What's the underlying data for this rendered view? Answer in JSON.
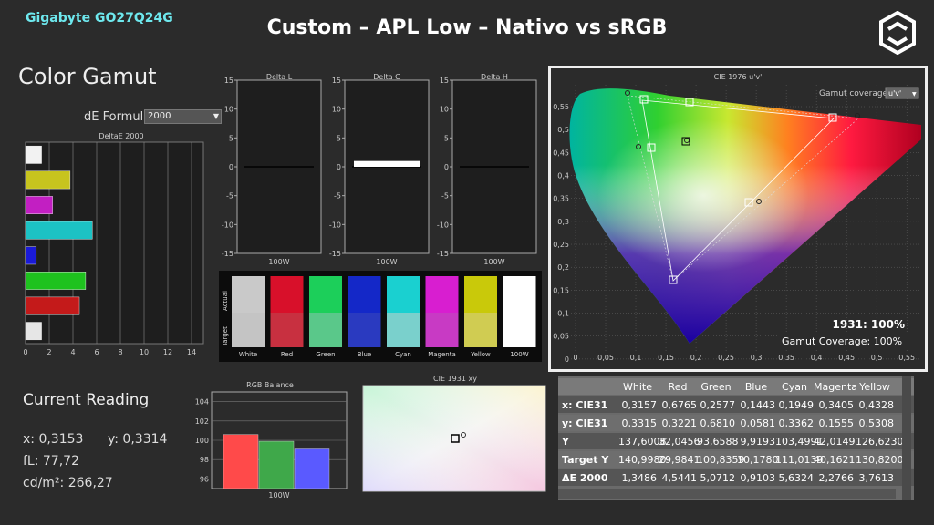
{
  "header": {
    "brand": "Gigabyte GO27Q24G",
    "title": "Custom – APL Low – Nativo vs sRGB"
  },
  "gamut_panel": {
    "title": "Color Gamut",
    "de_formula_label": "dE Formula:",
    "de_formula_value": "2000"
  },
  "deltae": {
    "title": "DeltaE 2000",
    "ticks": [
      "0",
      "2",
      "4",
      "6",
      "8",
      "10",
      "12",
      "14"
    ],
    "bars": [
      {
        "name": "White",
        "value": 1.35,
        "color": "#f2f2f2"
      },
      {
        "name": "Yellow",
        "value": 3.76,
        "color": "#c7c41e"
      },
      {
        "name": "Magenta",
        "value": 2.28,
        "color": "#c21fc2"
      },
      {
        "name": "Cyan",
        "value": 5.63,
        "color": "#1cc2c4"
      },
      {
        "name": "Blue",
        "value": 0.91,
        "color": "#1a1ad8"
      },
      {
        "name": "Green",
        "value": 5.07,
        "color": "#1ec21e"
      },
      {
        "name": "Red",
        "value": 4.54,
        "color": "#c41a1a"
      },
      {
        "name": "100W",
        "value": 1.35,
        "color": "#e6e6e6"
      }
    ]
  },
  "delta_charts": [
    {
      "title": "Delta L",
      "xlabel": "100W",
      "value": 0
    },
    {
      "title": "Delta C",
      "xlabel": "100W",
      "value": 1.0
    },
    {
      "title": "Delta H",
      "xlabel": "100W",
      "value": 0
    }
  ],
  "delta_ticks": [
    "15",
    "10",
    "5",
    "0",
    "-5",
    "-10",
    "-15"
  ],
  "swatches": {
    "row_actual": "Actual",
    "row_target": "Target",
    "items": [
      {
        "label": "White",
        "actual": "#c9c9c9",
        "target": "#c4c4c4"
      },
      {
        "label": "Red",
        "actual": "#d8102a",
        "target": "#c83040"
      },
      {
        "label": "Green",
        "actual": "#1ccf5a",
        "target": "#5ac88a"
      },
      {
        "label": "Blue",
        "actual": "#1428c8",
        "target": "#2a3ac0"
      },
      {
        "label": "Cyan",
        "actual": "#1ad0d0",
        "target": "#7ad0cc"
      },
      {
        "label": "Magenta",
        "actual": "#d81ed0",
        "target": "#c83ac4"
      },
      {
        "label": "Yellow",
        "actual": "#c9c90a",
        "target": "#d0cc52"
      },
      {
        "label": "100W",
        "actual": "#ffffff",
        "target": "#ffffff"
      }
    ]
  },
  "current": {
    "title": "Current Reading",
    "x": "x: 0,3153",
    "y": "y: 0,3314",
    "fl": "fL: 77,72",
    "cd": "cd/m²: 266,27"
  },
  "rgb_balance": {
    "title": "RGB Balance",
    "xlabel": "100W",
    "ticks": [
      "104",
      "102",
      "100",
      "98",
      "96"
    ],
    "ylim": [
      95,
      105
    ],
    "bars": [
      {
        "name": "R",
        "value": 100.6,
        "color": "#ff4a4a"
      },
      {
        "name": "G",
        "value": 99.9,
        "color": "#3fa84a"
      },
      {
        "name": "B",
        "value": 99.1,
        "color": "#5a5aff"
      }
    ]
  },
  "cie1931": {
    "title": "CIE 1931 xy"
  },
  "cie1976": {
    "title": "CIE 1976 u'v'",
    "coverage_label": "Gamut coverage:",
    "coverage_value": "u'v'",
    "result_line": "1931: 100%",
    "coverage_line": "Gamut Coverage:  100%",
    "xticks": [
      "0",
      "0,05",
      "0,1",
      "0,15",
      "0,2",
      "0,25",
      "0,3",
      "0,35",
      "0,4",
      "0,45",
      "0,5",
      "0,55"
    ],
    "yticks": [
      "0,55",
      "0,5",
      "0,45",
      "0,4",
      "0,35",
      "0,3",
      "0,25",
      "0,2",
      "0,15",
      "0,1",
      "0,05",
      "0"
    ]
  },
  "table": {
    "headers": [
      "",
      "White",
      "Red",
      "Green",
      "Blue",
      "Cyan",
      "Magenta",
      "Yellow"
    ],
    "rows": [
      [
        "x: CIE31",
        "0,3157",
        "0,6765",
        "0,2577",
        "0,1443",
        "0,1949",
        "0,3405",
        "0,4328"
      ],
      [
        "y: CIE31",
        "0,3315",
        "0,3221",
        "0,6810",
        "0,0581",
        "0,3362",
        "0,1555",
        "0,5308"
      ],
      [
        "Y",
        "137,6008",
        "32,0456",
        "93,6588",
        "9,9193",
        "103,4991",
        "42,0149",
        "126,6230"
      ],
      [
        "Target Y",
        "140,9980",
        "29,9841",
        "100,8359",
        "10,1780",
        "111,0139",
        "40,1621",
        "130,8200"
      ],
      [
        "ΔE 2000",
        "1,3486",
        "4,5441",
        "5,0712",
        "0,9103",
        "5,6324",
        "2,2766",
        "3,7613"
      ]
    ]
  }
}
